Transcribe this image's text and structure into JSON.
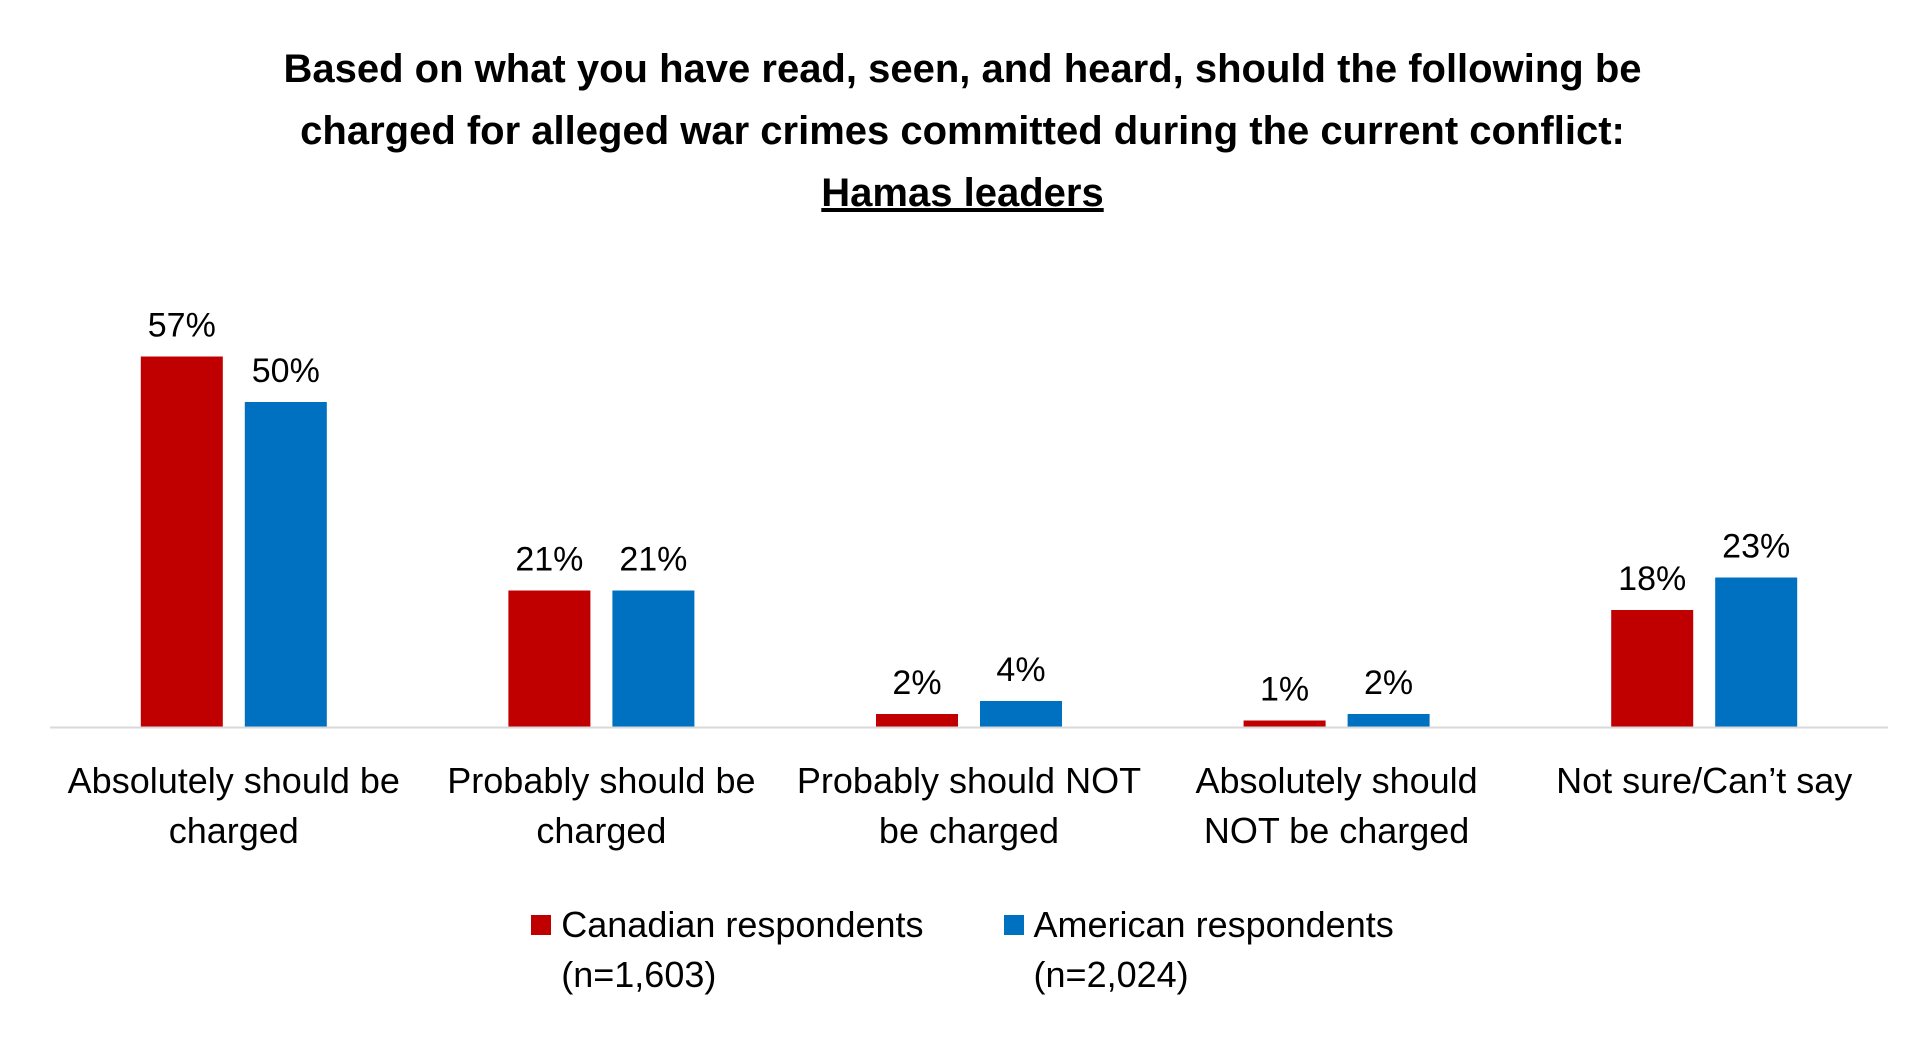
{
  "chart_data": {
    "type": "bar",
    "title": [
      "Based on what you have read, seen, and heard, should the following be",
      "charged for alleged war crimes committed during the current conflict:",
      "Hamas leaders"
    ],
    "categories": [
      [
        "Absolutely should be",
        "charged"
      ],
      [
        "Probably should be",
        "charged"
      ],
      [
        "Probably should NOT",
        "be charged"
      ],
      [
        "Absolutely should",
        "NOT be charged"
      ],
      [
        "Not sure/Can’t say"
      ]
    ],
    "series": [
      {
        "name": [
          "Canadian respondents",
          "(n=1,603)"
        ],
        "color": "#C00000",
        "values": [
          57,
          21,
          2,
          1,
          18
        ],
        "labels": [
          "57%",
          "21%",
          "2%",
          "1%",
          "18%"
        ]
      },
      {
        "name": [
          "American respondents",
          "(n=2,024)"
        ],
        "color": "#0070C0",
        "values": [
          50,
          21,
          4,
          2,
          23
        ],
        "labels": [
          "50%",
          "21%",
          "4%",
          "2%",
          "23%"
        ]
      }
    ],
    "ylim": [
      0,
      60
    ],
    "grid": false,
    "legend_position": "bottom",
    "axis_color": "#D9D9D9"
  }
}
